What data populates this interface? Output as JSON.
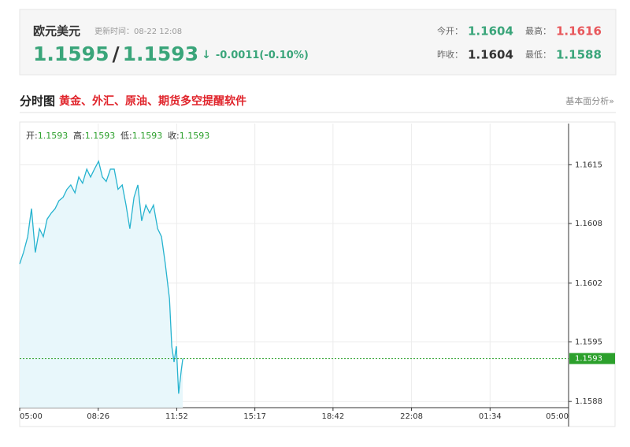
{
  "header": {
    "title": "欧元美元",
    "update_label": "更新时间：",
    "update_time": "08-22 12:08",
    "bid": 1.1595,
    "separator": "/",
    "ask": 1.1593,
    "arrow": "↓",
    "change": "-0.0011(-0.10%)",
    "stats": [
      {
        "label": "今开：",
        "value": 1.1604
      },
      {
        "label": "最高：",
        "value": 1.1616
      },
      {
        "label": "昨收：",
        "value": 1.1604
      },
      {
        "label": "最低：",
        "value": 1.1588
      }
    ]
  },
  "section": {
    "title": "分时图",
    "promo": "黄金、外汇、原油、期货多空提醒软件",
    "link": "基本面分析»"
  },
  "chart_data": {
    "type": "line",
    "info": [
      {
        "label": "开:",
        "value": 1.1593
      },
      {
        "label": "高:",
        "value": 1.1593
      },
      {
        "label": "低:",
        "value": 1.1593
      },
      {
        "label": "收:",
        "value": 1.1593
      }
    ],
    "x": [
      0,
      10,
      21,
      31,
      41,
      52,
      62,
      72,
      83,
      93,
      103,
      114,
      124,
      134,
      145,
      155,
      165,
      176,
      186,
      196,
      207,
      217,
      227,
      238,
      248,
      258,
      269,
      279,
      289,
      300,
      310,
      320,
      331,
      341,
      351,
      362,
      372,
      382,
      393,
      399,
      405,
      411,
      417,
      424,
      428
    ],
    "series": [
      {
        "color": "#26b3cf",
        "values": [
          1.16038,
          1.16051,
          1.16069,
          1.16101,
          1.16051,
          1.16078,
          1.16069,
          1.16089,
          1.16096,
          1.16101,
          1.1611,
          1.16114,
          1.16123,
          1.16128,
          1.16119,
          1.16137,
          1.1613,
          1.16146,
          1.16137,
          1.16146,
          1.16155,
          1.16137,
          1.16132,
          1.16146,
          1.16146,
          1.16123,
          1.16128,
          1.16105,
          1.16078,
          1.16114,
          1.16128,
          1.16087,
          1.16105,
          1.16096,
          1.16105,
          1.16078,
          1.16069,
          1.16038,
          1.15998,
          1.15944,
          1.15926,
          1.15944,
          1.1589,
          1.15917,
          1.1593
        ]
      }
    ],
    "current": 1.1593,
    "current_color": "#2ca02c",
    "xlim": [
      0,
      1440
    ],
    "xticks": [
      {
        "value": 0,
        "label": "05:00"
      },
      {
        "value": 206,
        "label": "08:26"
      },
      {
        "value": 412,
        "label": "11:52"
      },
      {
        "value": 617,
        "label": "15:17"
      },
      {
        "value": 822,
        "label": "18:42"
      },
      {
        "value": 1028,
        "label": "22:08"
      },
      {
        "value": 1234,
        "label": "01:34"
      },
      {
        "value": 1440,
        "label": "05:00"
      }
    ],
    "ylim": [
      1.15874,
      1.16198
    ],
    "yticks": [
      {
        "value": 1.15881,
        "label": "1.1588"
      },
      {
        "value": 1.15949,
        "label": "1.1595"
      },
      {
        "value": 1.16016,
        "label": "1.1602"
      },
      {
        "value": 1.16084,
        "label": "1.1608"
      },
      {
        "value": 1.16151,
        "label": "1.1615"
      }
    ],
    "grid": true
  }
}
